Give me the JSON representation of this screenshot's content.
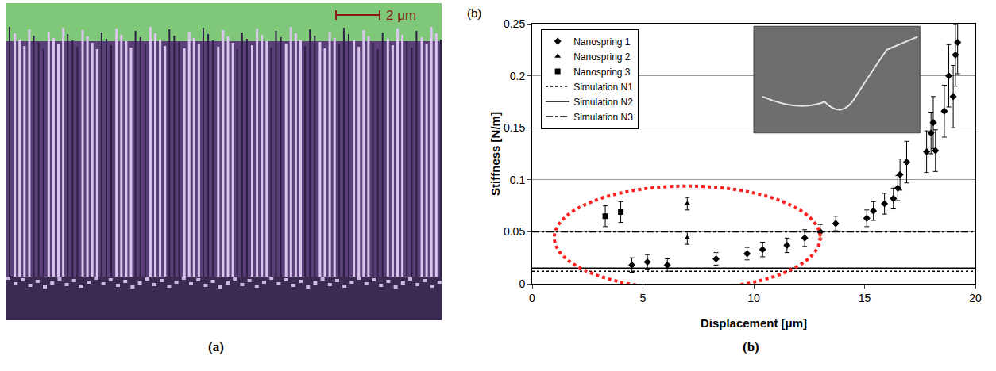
{
  "chart_data": {
    "type": "scatter",
    "panel_label": "(b)",
    "caption": "(b)",
    "x_label": "Displacement [μm]",
    "y_label": "Stiffness [N/m]",
    "xlim": [
      0,
      20
    ],
    "xticks": [
      0,
      5,
      10,
      15,
      20
    ],
    "ylim": [
      0,
      0.25
    ],
    "yticks": [
      0,
      0.05,
      0.1,
      0.15,
      0.2,
      0.25
    ],
    "grid": true,
    "legend": "top left",
    "series": [
      {
        "name": "Nanospring 1",
        "type": "scatter",
        "marker": "diamond",
        "color": "#000000",
        "x": [
          4.5,
          5.2,
          6.1,
          8.3,
          9.7,
          10.4,
          11.5,
          12.3,
          13.0,
          13.7,
          15.1,
          15.4,
          15.9,
          16.3,
          16.5,
          16.6,
          16.9,
          17.8,
          18.0,
          18.1,
          18.2,
          18.6,
          18.8,
          19.0,
          19.1,
          19.2
        ],
        "values": [
          0.018,
          0.021,
          0.018,
          0.024,
          0.029,
          0.033,
          0.037,
          0.044,
          0.05,
          0.058,
          0.063,
          0.07,
          0.077,
          0.082,
          0.092,
          0.105,
          0.117,
          0.127,
          0.145,
          0.155,
          0.128,
          0.166,
          0.2,
          0.18,
          0.22,
          0.232
        ],
        "error": [
          0.007,
          0.007,
          0.006,
          0.006,
          0.006,
          0.007,
          0.007,
          0.008,
          0.007,
          0.007,
          0.008,
          0.009,
          0.01,
          0.01,
          0.012,
          0.015,
          0.02,
          0.02,
          0.02,
          0.025,
          0.02,
          0.025,
          0.03,
          0.03,
          0.03,
          0.03
        ]
      },
      {
        "name": "Nanospring 2",
        "type": "scatter",
        "marker": "triangle-up",
        "color": "#000000",
        "x": [
          7.0,
          7.0
        ],
        "values": [
          0.044,
          0.077
        ],
        "error": [
          0.006,
          0.006
        ]
      },
      {
        "name": "Nanospring 3",
        "type": "scatter",
        "marker": "square",
        "color": "#000000",
        "x": [
          3.3,
          4.0
        ],
        "values": [
          0.065,
          0.069
        ],
        "error": [
          0.01,
          0.01
        ]
      },
      {
        "name": "Simulation N1",
        "type": "line",
        "line_style": "dot",
        "color": "#000000",
        "x": [
          0,
          20
        ],
        "values": [
          0.012,
          0.012
        ]
      },
      {
        "name": "Simulation N2",
        "type": "line",
        "line_style": "solid",
        "color": "#000000",
        "x": [
          0,
          20
        ],
        "values": [
          0.015,
          0.015
        ]
      },
      {
        "name": "Simulation N3",
        "type": "line",
        "line_style": "dashdot",
        "color": "#000000",
        "x": [
          0,
          20
        ],
        "values": [
          0.05,
          0.05
        ]
      }
    ]
  },
  "image_panel": {
    "scale_bar": "2 μm",
    "caption": "(a)"
  }
}
